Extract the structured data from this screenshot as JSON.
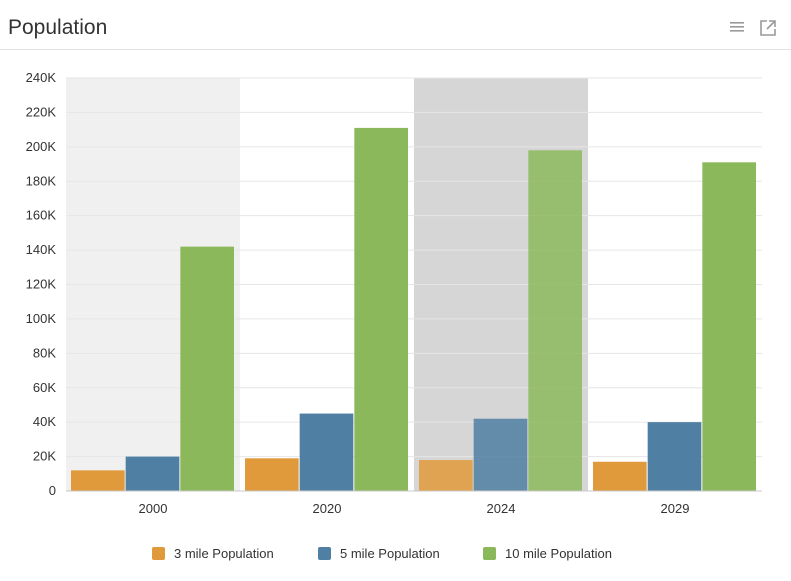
{
  "header": {
    "title": "Population",
    "menu_icon": "list-menu-icon",
    "expand_icon": "external-expand-icon"
  },
  "colors": {
    "series": [
      "#E19A3B",
      "#4F7FA3",
      "#8CB85C"
    ],
    "grid": "#e6e6e6",
    "highlight_light": "#f0f0f0",
    "highlight_dark": "#d6d6d6"
  },
  "chart_data": {
    "type": "bar",
    "title": "Population",
    "xlabel": "",
    "ylabel": "",
    "categories": [
      "2000",
      "2020",
      "2024",
      "2029"
    ],
    "ylim": [
      0,
      240000
    ],
    "yticks": [
      0,
      20000,
      40000,
      60000,
      80000,
      100000,
      120000,
      140000,
      160000,
      180000,
      200000,
      220000,
      240000
    ],
    "ytick_labels": [
      "0",
      "20K",
      "40K",
      "60K",
      "80K",
      "100K",
      "120K",
      "140K",
      "160K",
      "180K",
      "200K",
      "220K",
      "240K"
    ],
    "grid": true,
    "legend_position": "bottom-center",
    "highlighted_categories": [
      "2000",
      "2024"
    ],
    "series": [
      {
        "name": "3 mile Population",
        "values": [
          12000,
          19000,
          18000,
          17000
        ]
      },
      {
        "name": "5 mile Population",
        "values": [
          20000,
          45000,
          42000,
          40000
        ]
      },
      {
        "name": "10 mile Population",
        "values": [
          142000,
          211000,
          198000,
          191000
        ]
      }
    ]
  }
}
